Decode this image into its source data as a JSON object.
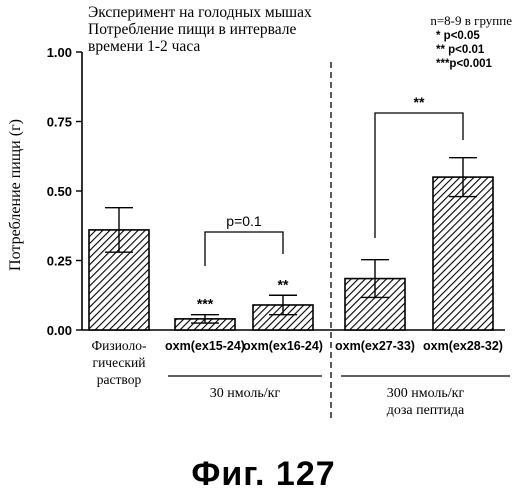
{
  "chart_data": {
    "type": "bar",
    "title_lines": [
      "Эксперимент на голодных мышах",
      "Потребление пищи в интервале",
      "времени 1-2 часа"
    ],
    "legend_lines": [
      "n=8-9 в группе",
      "* p<0.05",
      "** p<0.01",
      "***p<0.001"
    ],
    "ylabel": "Потребление пищи (г)",
    "ylim": [
      0,
      1.0
    ],
    "yticks": [
      "0.00",
      "0.25",
      "0.50",
      "0.75",
      "1.00"
    ],
    "ytick_values": [
      0,
      0.25,
      0.5,
      0.75,
      1.0
    ],
    "categories": [
      "Физиоло-\nгический\nраствор",
      "oxm(ex15-24)",
      "oxm(ex16-24)",
      "oxm(ex27-33)",
      "oxm(ex28-32)"
    ],
    "values": [
      0.36,
      0.04,
      0.09,
      0.185,
      0.55
    ],
    "errors": [
      0.08,
      0.015,
      0.035,
      0.068,
      0.07
    ],
    "significance": [
      "",
      "***",
      "**",
      "",
      ""
    ],
    "comparisons": [
      {
        "between": [
          1,
          2
        ],
        "label": "p=0.1"
      },
      {
        "between": [
          3,
          4
        ],
        "label": "**"
      }
    ],
    "group_labels": [
      {
        "text": "30 нмоль/кг",
        "bars": [
          1,
          2
        ]
      },
      {
        "text": "300 нмоль/кг\nдоза пептида",
        "bars": [
          3,
          4
        ]
      }
    ],
    "divider": "dashed"
  },
  "figure_caption": "Фиг.  127"
}
